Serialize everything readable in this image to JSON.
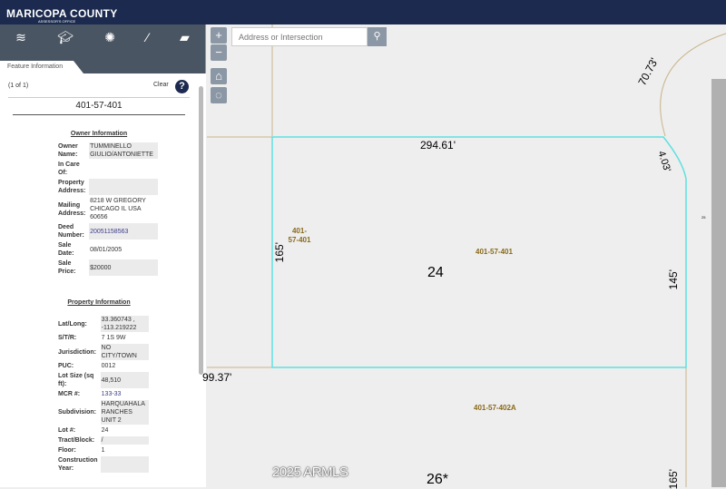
{
  "header": {
    "logo": "MARICOPA COUNTY",
    "logo_sub": "ASSESSOR'S OFFICE",
    "brand_color": "#1b2a4e"
  },
  "toolbar": [
    "layers-icon",
    "graduation-cap-icon",
    "palette-icon",
    "ruler-icon",
    "comment-icon"
  ],
  "panel": {
    "tab": "Feature Information",
    "count": "(1 of 1)",
    "clear": "Clear",
    "apn": "401-57-401",
    "owner_title": "Owner Information",
    "owner": [
      {
        "label": "Owner Name:",
        "value": "TUMMINELLO GIULIO/ANTONIETTE"
      },
      {
        "label": "In Care Of:",
        "value": ""
      },
      {
        "label": "Property Address:",
        "value": ""
      },
      {
        "label": "Mailing Address:",
        "value": "8218 W GREGORY CHICAGO IL USA 60656"
      },
      {
        "label": "Deed Number:",
        "value": "20051158563",
        "link": true
      },
      {
        "label": "Sale Date:",
        "value": "08/01/2005"
      },
      {
        "label": "Sale Price:",
        "value": "$20000"
      }
    ],
    "property_title": "Property Information",
    "property": [
      {
        "label": "Lat/Long:",
        "value": "33.360743 , -113.219222"
      },
      {
        "label": "S/T/R:",
        "value": "7 1S 9W"
      },
      {
        "label": "Jurisdiction:",
        "value": "NO CITY/TOWN"
      },
      {
        "label": "PUC:",
        "value": "0012"
      },
      {
        "label": "Lot Size (sq ft):",
        "value": "48,510"
      },
      {
        "label": "MCR #:",
        "value": "133-33",
        "link": true
      },
      {
        "label": "Subdivision:",
        "value": "HARQUAHALA RANCHES UNIT 2"
      },
      {
        "label": "Lot #:",
        "value": "24"
      },
      {
        "label": "Tract/Block:",
        "value": "/"
      },
      {
        "label": "Floor:",
        "value": "1"
      },
      {
        "label": "Construction Year:",
        "value": ""
      }
    ]
  },
  "map": {
    "search_placeholder": "Address or Intersection",
    "zoom_in": "+",
    "zoom_out": "−",
    "labels": {
      "top": "294.61'",
      "arc": "70.73'",
      "corner": "4.03'",
      "left": "165'",
      "right": "145'",
      "bottom_left": "99.37'",
      "lot": "24",
      "lot_below": "26*",
      "apn_small": "401-57-401",
      "apn_center": "401-57-401",
      "apn_below": "401-57-402A",
      "right_bottom": "165'",
      "tiny": "25"
    },
    "selection_color": "#5fe0e0"
  },
  "watermark": "2025 ARMLS"
}
